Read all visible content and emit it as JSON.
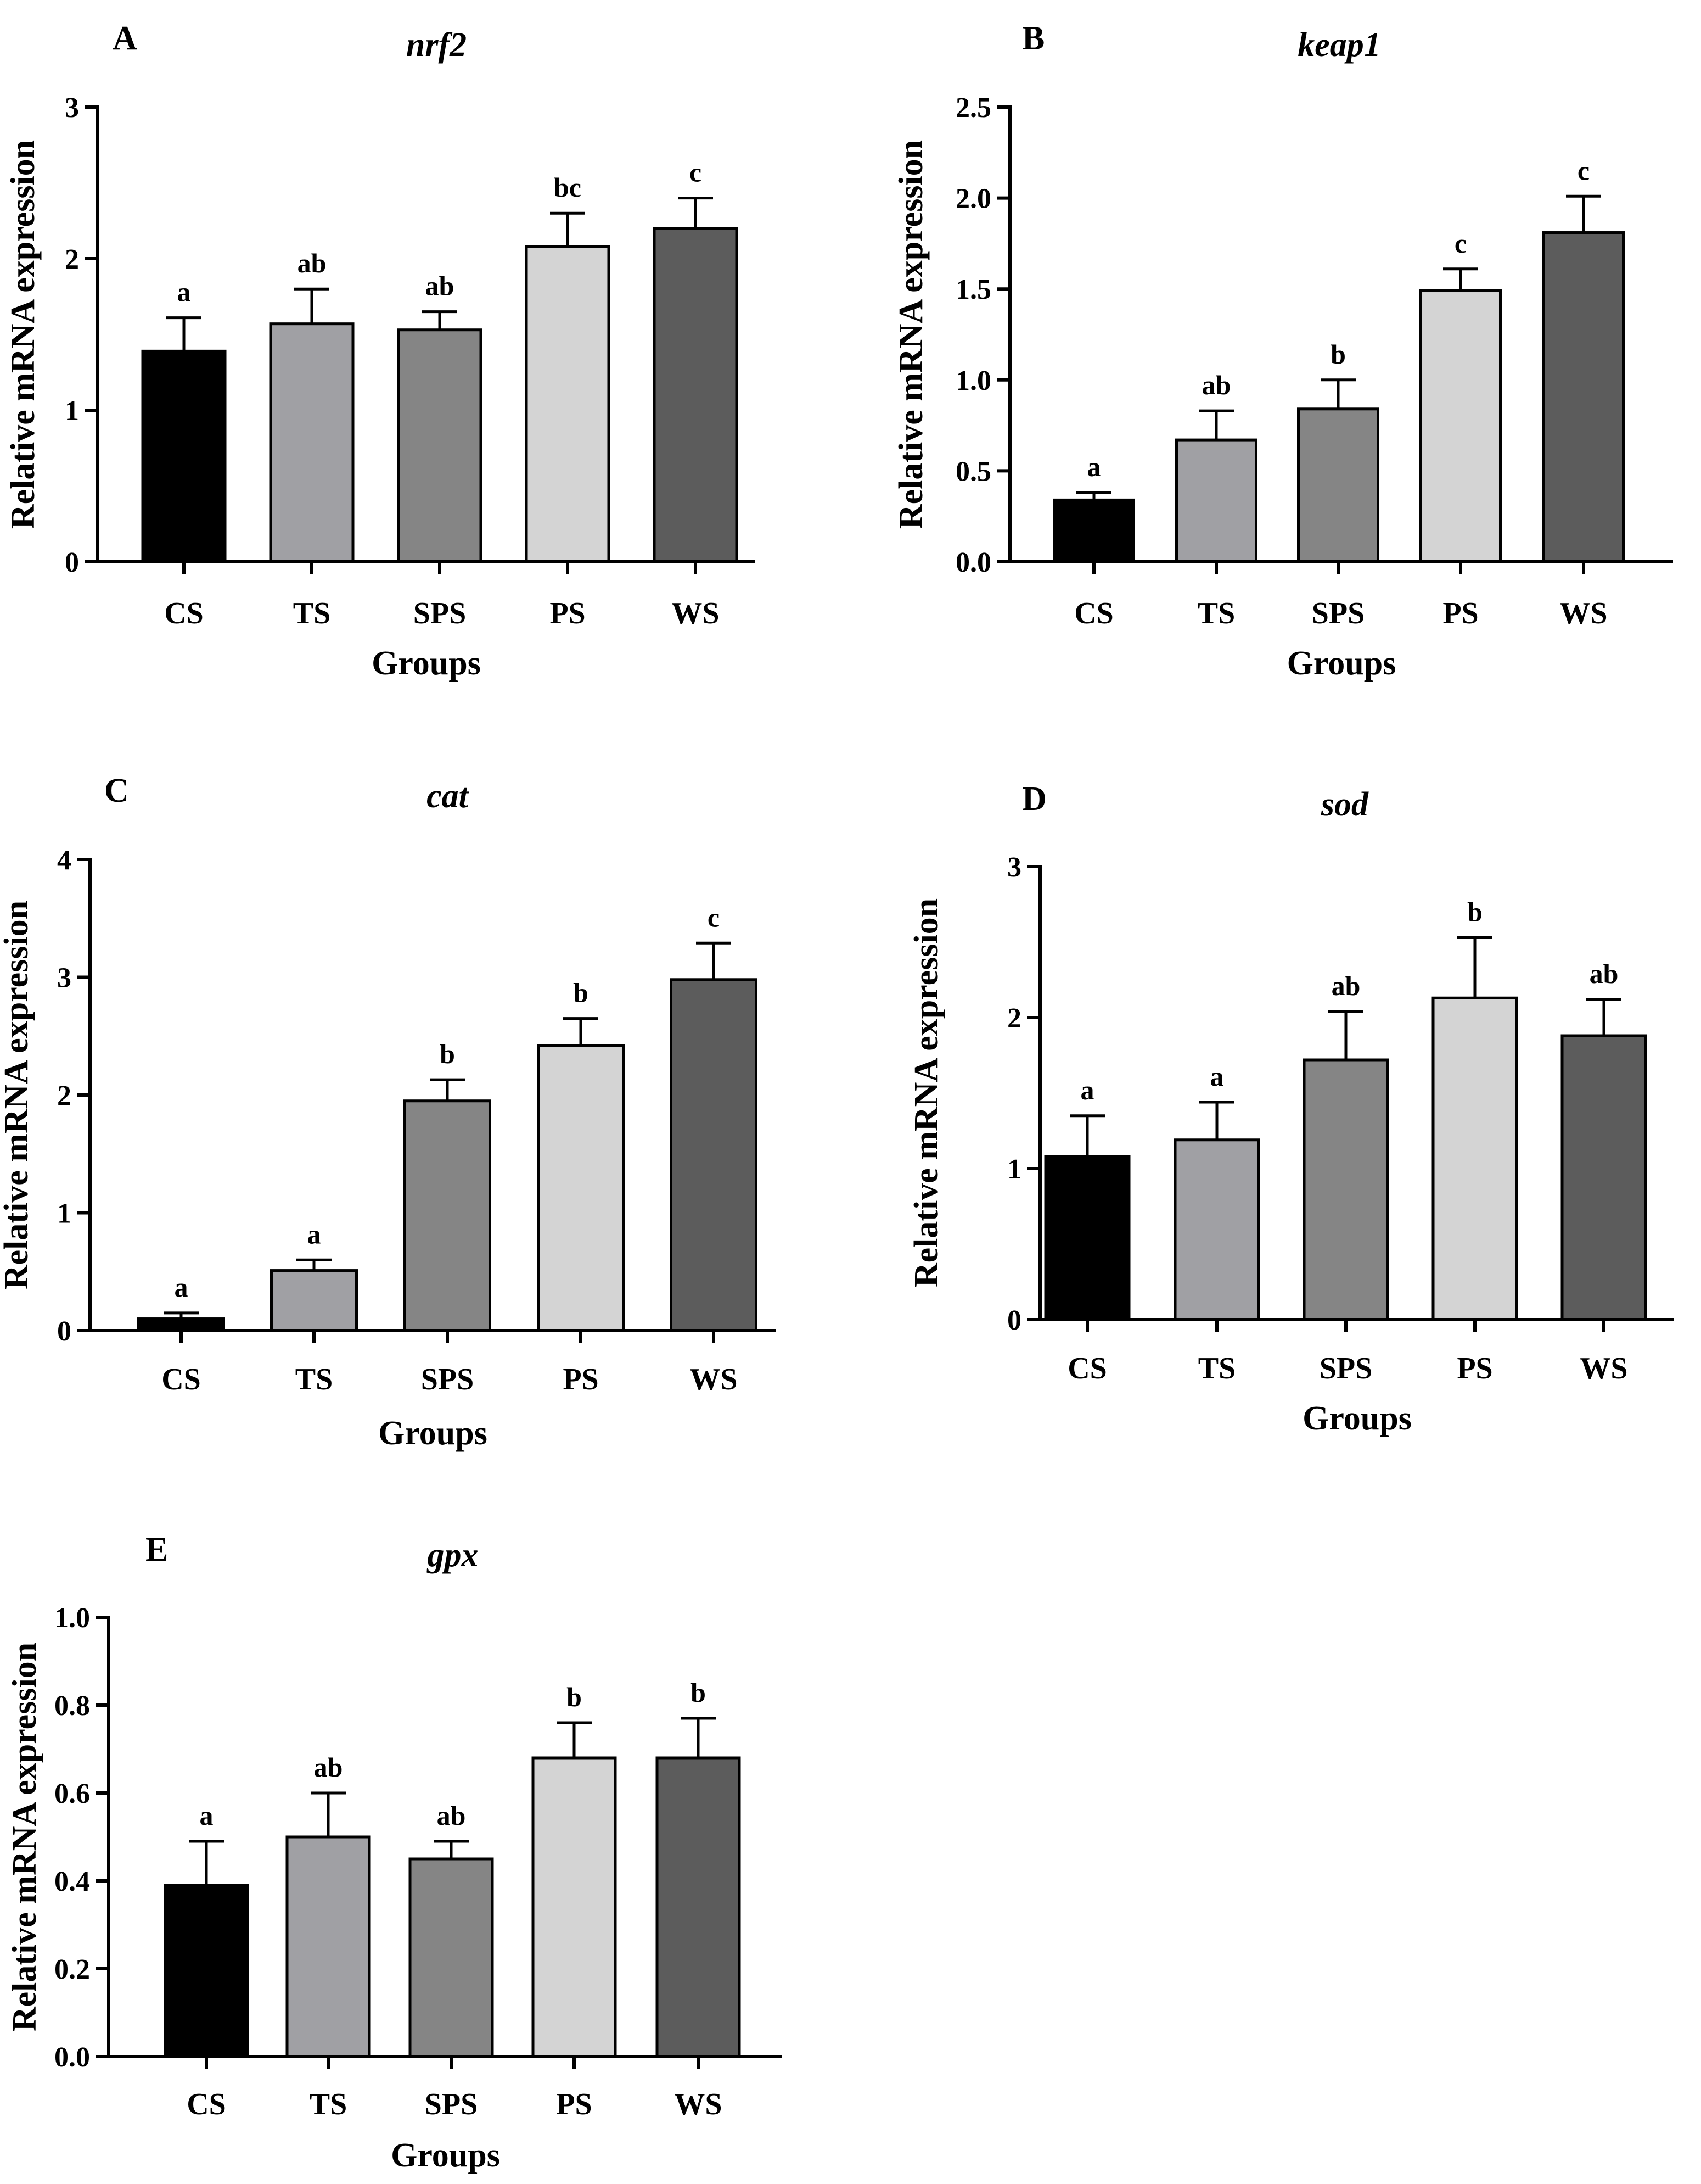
{
  "figure": {
    "panels": [
      "A",
      "B",
      "C",
      "D",
      "E"
    ]
  },
  "chart_data": [
    {
      "type": "bar",
      "panel_label": "A",
      "title": "nrf2",
      "xlabel": "Groups",
      "ylabel": "Relative mRNA expression",
      "ylim": [
        0,
        3
      ],
      "yticks": [
        0,
        1,
        2,
        3
      ],
      "ytick_labels": [
        "0",
        "1",
        "2",
        "3"
      ],
      "categories": [
        "CS",
        "TS",
        "SPS",
        "PS",
        "WS"
      ],
      "values": [
        1.39,
        1.57,
        1.53,
        2.08,
        2.2
      ],
      "errors": [
        0.22,
        0.23,
        0.12,
        0.22,
        0.2
      ],
      "significance": [
        "a",
        "ab",
        "ab",
        "bc",
        "c"
      ],
      "colors": [
        "#000000",
        "#a0a0a4",
        "#858585",
        "#d4d4d4",
        "#5c5c5c"
      ]
    },
    {
      "type": "bar",
      "panel_label": "B",
      "title": "keap1",
      "xlabel": "Groups",
      "ylabel": "Relative mRNA expression",
      "ylim": [
        0,
        2.5
      ],
      "yticks": [
        0,
        0.5,
        1.0,
        1.5,
        2.0,
        2.5
      ],
      "ytick_labels": [
        "0.0",
        "0.5",
        "1.0",
        "1.5",
        "2.0",
        "2.5"
      ],
      "categories": [
        "CS",
        "TS",
        "SPS",
        "PS",
        "WS"
      ],
      "values": [
        0.34,
        0.67,
        0.84,
        1.49,
        1.81
      ],
      "errors": [
        0.04,
        0.16,
        0.16,
        0.12,
        0.2
      ],
      "significance": [
        "a",
        "ab",
        "b",
        "c",
        "c"
      ],
      "colors": [
        "#000000",
        "#a0a0a4",
        "#858585",
        "#d4d4d4",
        "#5c5c5c"
      ]
    },
    {
      "type": "bar",
      "panel_label": "C",
      "title": "cat",
      "xlabel": "Groups",
      "ylabel": "Relative mRNA expression",
      "ylim": [
        0,
        4
      ],
      "yticks": [
        0,
        1,
        2,
        3,
        4
      ],
      "ytick_labels": [
        "0",
        "1",
        "2",
        "3",
        "4"
      ],
      "categories": [
        "CS",
        "TS",
        "SPS",
        "PS",
        "WS"
      ],
      "values": [
        0.1,
        0.51,
        1.95,
        2.42,
        2.98
      ],
      "errors": [
        0.05,
        0.09,
        0.18,
        0.23,
        0.31
      ],
      "significance": [
        "a",
        "a",
        "b",
        "b",
        "c"
      ],
      "colors": [
        "#000000",
        "#a0a0a4",
        "#858585",
        "#d4d4d4",
        "#5c5c5c"
      ]
    },
    {
      "type": "bar",
      "panel_label": "D",
      "title": "sod",
      "xlabel": "Groups",
      "ylabel": "Relative mRNA expression",
      "ylim": [
        0,
        3
      ],
      "yticks": [
        0,
        1,
        2,
        3
      ],
      "ytick_labels": [
        "0",
        "1",
        "2",
        "3"
      ],
      "categories": [
        "CS",
        "TS",
        "SPS",
        "PS",
        "WS"
      ],
      "values": [
        1.08,
        1.19,
        1.72,
        2.13,
        1.88
      ],
      "errors": [
        0.27,
        0.25,
        0.32,
        0.4,
        0.24
      ],
      "significance": [
        "a",
        "a",
        "ab",
        "b",
        "ab"
      ],
      "colors": [
        "#000000",
        "#a0a0a4",
        "#858585",
        "#d4d4d4",
        "#5c5c5c"
      ]
    },
    {
      "type": "bar",
      "panel_label": "E",
      "title": "gpx",
      "xlabel": "Groups",
      "ylabel": "Relative mRNA expression",
      "ylim": [
        0,
        1.0
      ],
      "yticks": [
        0,
        0.2,
        0.4,
        0.6,
        0.8,
        1.0
      ],
      "ytick_labels": [
        "0.0",
        "0.2",
        "0.4",
        "0.6",
        "0.8",
        "1.0"
      ],
      "categories": [
        "CS",
        "TS",
        "SPS",
        "PS",
        "WS"
      ],
      "values": [
        0.39,
        0.5,
        0.45,
        0.68,
        0.68
      ],
      "errors": [
        0.1,
        0.1,
        0.04,
        0.08,
        0.09
      ],
      "significance": [
        "a",
        "ab",
        "ab",
        "b",
        "b"
      ],
      "colors": [
        "#000000",
        "#a0a0a4",
        "#858585",
        "#d4d4d4",
        "#5c5c5c"
      ]
    }
  ]
}
